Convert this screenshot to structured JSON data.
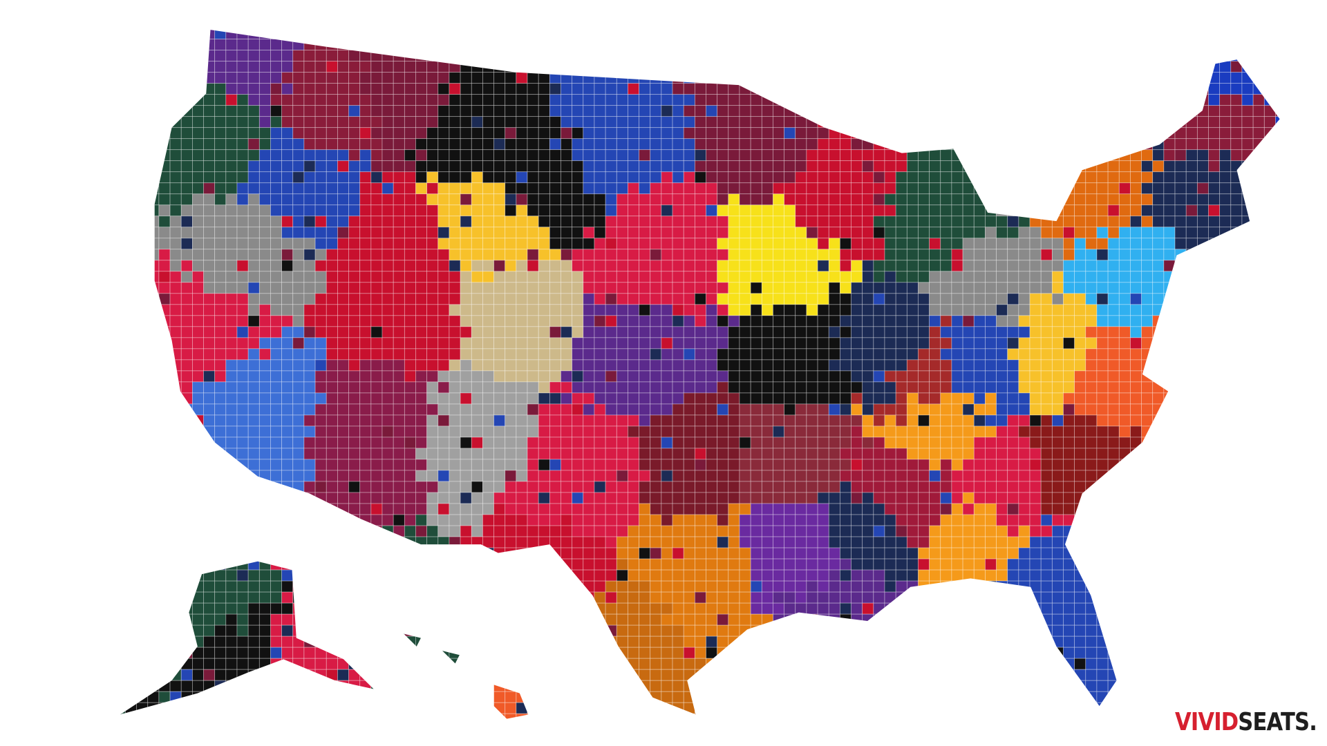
{
  "logo": {
    "first": "VIVID",
    "second": "SEATS."
  }
}
